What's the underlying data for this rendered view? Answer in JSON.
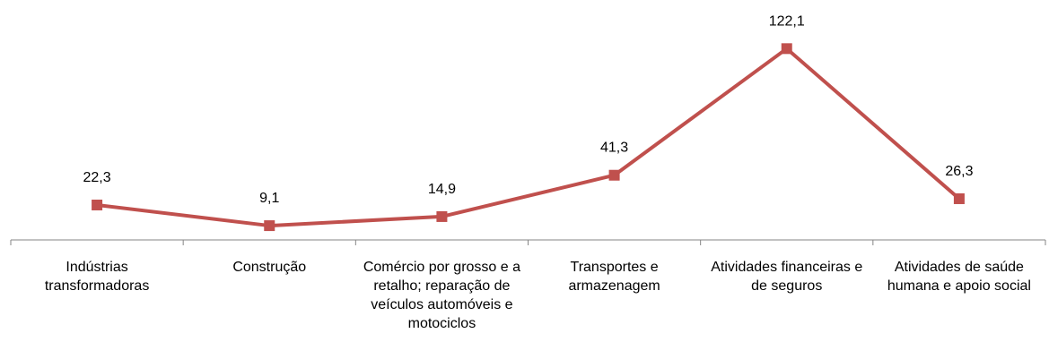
{
  "chart_data": {
    "type": "line",
    "categories": [
      "Indústrias transformadoras",
      "Construção",
      "Comércio por grosso e a retalho; reparação de veículos automóveis e motociclos",
      "Transportes e armazenagem",
      "Atividades financeiras e de seguros",
      "Atividades de saúde humana e apoio social"
    ],
    "series": [
      {
        "color": "#c0504d",
        "values": [
          22.3,
          9.1,
          14.9,
          41.3,
          122.1,
          26.3
        ],
        "value_labels": [
          "22,3",
          "9,1",
          "14,9",
          "41,3",
          "122,1",
          "26,3"
        ]
      }
    ],
    "ylim": [
      0,
      140
    ]
  }
}
